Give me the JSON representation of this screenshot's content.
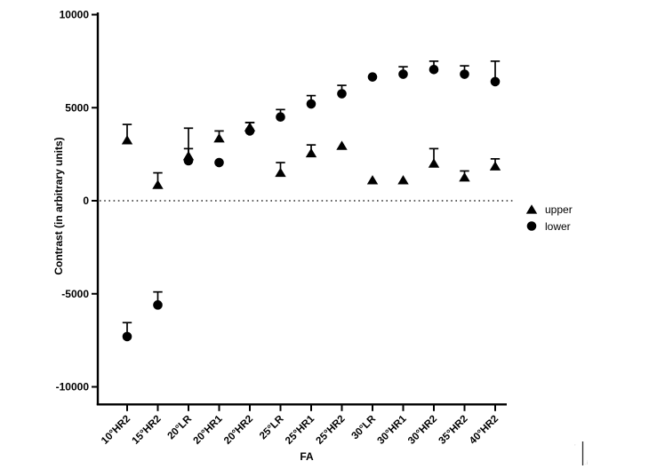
{
  "colors": {
    "foreground": "#000000",
    "background": "#ffffff"
  },
  "legend": {
    "upper_label": "upper",
    "lower_label": "lower"
  },
  "chart_data": {
    "type": "scatter",
    "title": "",
    "xlabel": "FA",
    "ylabel": "Contrast (in arbitrary units)",
    "ylim": [
      -10000,
      10000
    ],
    "yticks": [
      10000,
      5000,
      0,
      -5000,
      -10000
    ],
    "zero_line_style": "dotted",
    "grid": false,
    "legend_position": "right-middle",
    "error_bars": "upward-one-sided",
    "categories": [
      "10°HR2",
      "15°HR2",
      "20°LR",
      "20°HR1",
      "20°HR2",
      "25°LR",
      "25°HR1",
      "25°HR2",
      "30°LR",
      "30°HR1",
      "30°HR2",
      "35°HR2",
      "40°HR2"
    ],
    "series": [
      {
        "name": "upper",
        "marker": "triangle",
        "values": [
          3250,
          850,
          2400,
          3350,
          3950,
          1500,
          2550,
          2950,
          1100,
          1100,
          2000,
          1250,
          1850
        ],
        "error_top": [
          4100,
          1500,
          3900,
          3750,
          4200,
          2050,
          3000,
          null,
          null,
          null,
          2800,
          1600,
          2250
        ]
      },
      {
        "name": "lower",
        "marker": "circle",
        "values": [
          -7300,
          -5600,
          2150,
          2050,
          3750,
          4500,
          5200,
          5750,
          6650,
          6800,
          7050,
          6800,
          6400
        ],
        "error_top": [
          -6550,
          -4900,
          2800,
          null,
          4200,
          4900,
          5650,
          6200,
          null,
          7200,
          7500,
          7250,
          7500
        ]
      }
    ]
  },
  "artifact": {
    "cursor_mark": "|"
  }
}
